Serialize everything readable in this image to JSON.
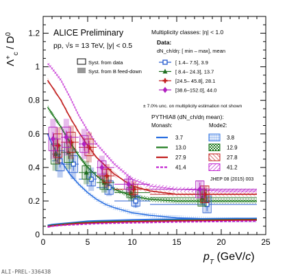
{
  "chart_data": {
    "type": "scatter",
    "title": "ALICE Preliminary",
    "subtitle": "pp, √s = 13 TeV, |y| < 0.5",
    "xlabel": "p_T (GeV/c)",
    "ylabel": "Λc⁺ / D⁰",
    "xlim": [
      0,
      25
    ],
    "ylim": [
      0,
      1.3
    ],
    "xticks": [
      0,
      5,
      10,
      15,
      20,
      25
    ],
    "yticks": [
      0,
      0.2,
      0.4,
      0.6,
      0.8,
      1,
      1.2
    ],
    "ytick_labels": [
      "0",
      "0.2",
      "0.4",
      "0.6",
      "0.8",
      "1",
      "1.2"
    ],
    "legend_data": {
      "header": "Multiplicity classes: |η| < 1.0",
      "title": "Data:",
      "subtitle": "dN_ch/dη: [ min –   max], mean",
      "syst_box": {
        "syst_data": "Syst. from data",
        "syst_bfeed": "Syst. from B feed-down"
      }
    },
    "note": "± 7.0% unc. on multiplicity estimation not shown",
    "pythia_title": "PYTHIA8 (dN_ch/dη mean):",
    "monash_label": "Monash:",
    "mode2_label": "Mode2:",
    "reference": "JHEP 08 (2015) 003",
    "series": [
      {
        "name": "[  1.4–   7.5],   3.9",
        "color": "#2a5fd0",
        "marker": "square",
        "points": [
          {
            "x": 1.5,
            "y": 0.44,
            "xerr": 0.5,
            "sys": 0.06,
            "bfd": 0.1
          },
          {
            "x": 3.0,
            "y": 0.42,
            "xerr": 1.0,
            "sys": 0.05,
            "bfd": 0.09
          },
          {
            "x": 5.0,
            "y": 0.33,
            "xerr": 1.0,
            "sys": 0.04,
            "bfd": 0.07
          },
          {
            "x": 7.0,
            "y": 0.28,
            "xerr": 1.0,
            "sys": 0.04,
            "bfd": 0.05
          },
          {
            "x": 10.0,
            "y": 0.2,
            "xerr": 2.0,
            "sys": 0.03,
            "bfd": 0.04
          },
          {
            "x": 18.0,
            "y": 0.18,
            "xerr": 6.0,
            "sys": 0.05,
            "bfd": 0.05
          }
        ]
      },
      {
        "name": "[  8.4–  24.3],  13.7",
        "color": "#1f6e1f",
        "marker": "triangle",
        "points": [
          {
            "x": 1.5,
            "y": 0.48,
            "xerr": 0.5,
            "sys": 0.06,
            "bfd": 0.1
          },
          {
            "x": 3.0,
            "y": 0.49,
            "xerr": 1.0,
            "sys": 0.06,
            "bfd": 0.1
          },
          {
            "x": 5.0,
            "y": 0.37,
            "xerr": 1.0,
            "sys": 0.04,
            "bfd": 0.07
          },
          {
            "x": 7.0,
            "y": 0.31,
            "xerr": 1.0,
            "sys": 0.04,
            "bfd": 0.06
          },
          {
            "x": 10.0,
            "y": 0.25,
            "xerr": 2.0,
            "sys": 0.03,
            "bfd": 0.05
          },
          {
            "x": 18.0,
            "y": 0.22,
            "xerr": 6.0,
            "sys": 0.05,
            "bfd": 0.05
          }
        ]
      },
      {
        "name": "[24.5–  45.8],  28.1",
        "color": "#c01a1a",
        "marker": "cross",
        "points": [
          {
            "x": 1.5,
            "y": 0.53,
            "xerr": 0.5,
            "sys": 0.07,
            "bfd": 0.11
          },
          {
            "x": 3.0,
            "y": 0.55,
            "xerr": 1.0,
            "sys": 0.06,
            "bfd": 0.1
          },
          {
            "x": 5.0,
            "y": 0.52,
            "xerr": 1.0,
            "sys": 0.05,
            "bfd": 0.09
          },
          {
            "x": 7.0,
            "y": 0.35,
            "xerr": 1.0,
            "sys": 0.04,
            "bfd": 0.07
          },
          {
            "x": 10.0,
            "y": 0.27,
            "xerr": 2.0,
            "sys": 0.03,
            "bfd": 0.05
          },
          {
            "x": 18.0,
            "y": 0.24,
            "xerr": 6.0,
            "sys": 0.05,
            "bfd": 0.05
          }
        ]
      },
      {
        "name": "[38.6–152.0],  44.0",
        "color": "#b020c0",
        "marker": "diamond",
        "points": [
          {
            "x": 1.5,
            "y": 0.57,
            "xerr": 0.5,
            "sys": 0.07,
            "bfd": 0.12
          },
          {
            "x": 3.0,
            "y": 0.58,
            "xerr": 1.0,
            "sys": 0.06,
            "bfd": 0.11
          },
          {
            "x": 5.0,
            "y": 0.54,
            "xerr": 1.0,
            "sys": 0.05,
            "bfd": 0.09
          },
          {
            "x": 7.0,
            "y": 0.4,
            "xerr": 1.0,
            "sys": 0.04,
            "bfd": 0.07
          },
          {
            "x": 10.0,
            "y": 0.3,
            "xerr": 2.0,
            "sys": 0.03,
            "bfd": 0.05
          },
          {
            "x": 18.0,
            "y": 0.27,
            "xerr": 6.0,
            "sys": 0.05,
            "bfd": 0.05
          }
        ]
      }
    ],
    "model_curves": [
      {
        "tune": "Monash",
        "name": "3.7",
        "color": "#2a6fe0",
        "style": "solid",
        "x": [
          0.5,
          1,
          2,
          3,
          4,
          5,
          6,
          8,
          10,
          12,
          15,
          20,
          24
        ],
        "y": [
          0.055,
          0.06,
          0.065,
          0.07,
          0.075,
          0.08,
          0.082,
          0.085,
          0.088,
          0.09,
          0.092,
          0.095,
          0.097
        ]
      },
      {
        "tune": "Monash",
        "name": "13.0",
        "color": "#1f7a1f",
        "style": "solid",
        "x": [
          0.5,
          1,
          2,
          3,
          4,
          5,
          6,
          8,
          10,
          12,
          15,
          20,
          24
        ],
        "y": [
          0.05,
          0.055,
          0.06,
          0.065,
          0.07,
          0.072,
          0.075,
          0.078,
          0.08,
          0.082,
          0.085,
          0.088,
          0.09
        ]
      },
      {
        "tune": "Monash",
        "name": "27.9",
        "color": "#c01a1a",
        "style": "solid",
        "x": [
          0.5,
          1,
          2,
          3,
          4,
          5,
          6,
          8,
          10,
          12,
          15,
          20,
          24
        ],
        "y": [
          0.048,
          0.052,
          0.057,
          0.062,
          0.066,
          0.069,
          0.071,
          0.074,
          0.077,
          0.079,
          0.082,
          0.085,
          0.087
        ]
      },
      {
        "tune": "Monash",
        "name": "41.4",
        "color": "#c020d0",
        "style": "dashed",
        "x": [
          0.5,
          1,
          2,
          3,
          4,
          5,
          6,
          8,
          10,
          12,
          15,
          20,
          24
        ],
        "y": [
          0.045,
          0.05,
          0.055,
          0.058,
          0.06,
          0.063,
          0.065,
          0.068,
          0.07,
          0.072,
          0.075,
          0.078,
          0.08
        ]
      },
      {
        "tune": "Mode2",
        "name": "3.8",
        "color": "#2a6fe0",
        "style": "solid",
        "x": [
          0.5,
          1,
          2,
          3,
          4,
          5,
          6,
          7,
          8,
          10,
          12,
          15,
          20,
          24
        ],
        "y": [
          0.6,
          0.54,
          0.44,
          0.36,
          0.3,
          0.25,
          0.21,
          0.18,
          0.16,
          0.13,
          0.115,
          0.1,
          0.09,
          0.085
        ]
      },
      {
        "tune": "Mode2",
        "name": "12.9",
        "color": "#1f7a1f",
        "style": "solid",
        "x": [
          0.5,
          1,
          2,
          3,
          4,
          5,
          6,
          8,
          10,
          12,
          15,
          20,
          24
        ],
        "y": [
          0.76,
          0.72,
          0.64,
          0.55,
          0.47,
          0.4,
          0.35,
          0.27,
          0.23,
          0.21,
          0.2,
          0.2,
          0.2
        ]
      },
      {
        "tune": "Mode2",
        "name": "27.8",
        "color": "#c01a1a",
        "style": "solid",
        "x": [
          0.5,
          1,
          2,
          3,
          4,
          5,
          6,
          8,
          10,
          12,
          15,
          20,
          24
        ],
        "y": [
          0.92,
          0.88,
          0.8,
          0.7,
          0.61,
          0.53,
          0.46,
          0.36,
          0.29,
          0.26,
          0.24,
          0.24,
          0.24
        ]
      },
      {
        "tune": "Mode2",
        "name": "41.2",
        "color": "#c020d0",
        "style": "hatched",
        "x": [
          0.5,
          1,
          2,
          3,
          4,
          5,
          6,
          8,
          10,
          12,
          15,
          20,
          24
        ],
        "y": [
          1.02,
          0.99,
          0.92,
          0.82,
          0.71,
          0.62,
          0.54,
          0.42,
          0.33,
          0.29,
          0.27,
          0.26,
          0.26
        ]
      }
    ]
  },
  "caption": "ALI-PREL-336438"
}
